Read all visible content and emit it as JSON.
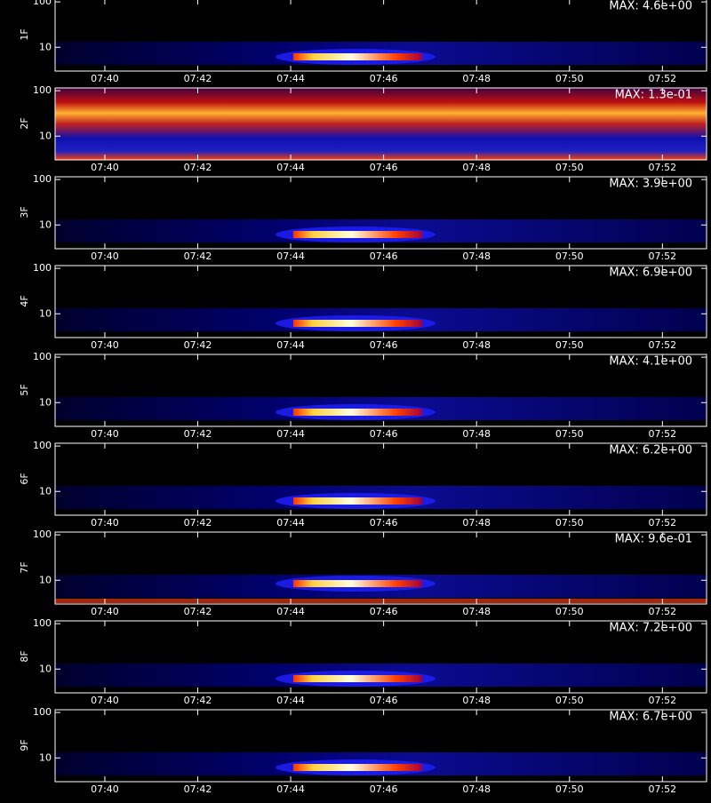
{
  "chart_data": [
    {
      "type": "heatmap",
      "ylabel": "1F",
      "annotation": "MAX: 4.6e+00",
      "log_y": true,
      "xlim": [
        458.93,
        472.95
      ],
      "ylim": [
        3,
        115
      ],
      "yticks": [
        10,
        100
      ],
      "xticks": [
        {
          "value": 460,
          "label": "07:40"
        },
        {
          "value": 462,
          "label": "07:42"
        },
        {
          "value": 464,
          "label": "07:44"
        },
        {
          "value": 466,
          "label": "07:46"
        },
        {
          "value": 468,
          "label": "07:48"
        },
        {
          "value": 470,
          "label": "07:50"
        },
        {
          "value": 472,
          "label": "07:52"
        }
      ]
    },
    {
      "type": "heatmap",
      "ylabel": "2F",
      "annotation": "MAX: 1.3e-01",
      "log_y": true,
      "xlim": [
        458.93,
        472.95
      ],
      "ylim": [
        3,
        115
      ],
      "yticks": [
        10,
        100
      ],
      "xticks": [
        {
          "value": 460,
          "label": "07:40"
        },
        {
          "value": 462,
          "label": "07:42"
        },
        {
          "value": 464,
          "label": "07:44"
        },
        {
          "value": 466,
          "label": "07:46"
        },
        {
          "value": 468,
          "label": "07:48"
        },
        {
          "value": 470,
          "label": "07:50"
        },
        {
          "value": 472,
          "label": "07:52"
        }
      ]
    },
    {
      "type": "heatmap",
      "ylabel": "3F",
      "annotation": "MAX: 3.9e+00",
      "log_y": true,
      "xlim": [
        458.93,
        472.95
      ],
      "ylim": [
        3,
        115
      ],
      "yticks": [
        10,
        100
      ],
      "xticks": [
        {
          "value": 460,
          "label": "07:40"
        },
        {
          "value": 462,
          "label": "07:42"
        },
        {
          "value": 464,
          "label": "07:44"
        },
        {
          "value": 466,
          "label": "07:46"
        },
        {
          "value": 468,
          "label": "07:48"
        },
        {
          "value": 470,
          "label": "07:50"
        },
        {
          "value": 472,
          "label": "07:52"
        }
      ]
    },
    {
      "type": "heatmap",
      "ylabel": "4F",
      "annotation": "MAX: 6.9e+00",
      "log_y": true,
      "xlim": [
        458.93,
        472.95
      ],
      "ylim": [
        3,
        115
      ],
      "yticks": [
        10,
        100
      ],
      "xticks": [
        {
          "value": 460,
          "label": "07:40"
        },
        {
          "value": 462,
          "label": "07:42"
        },
        {
          "value": 464,
          "label": "07:44"
        },
        {
          "value": 466,
          "label": "07:46"
        },
        {
          "value": 468,
          "label": "07:48"
        },
        {
          "value": 470,
          "label": "07:50"
        },
        {
          "value": 472,
          "label": "07:52"
        }
      ]
    },
    {
      "type": "heatmap",
      "ylabel": "5F",
      "annotation": "MAX: 4.1e+00",
      "log_y": true,
      "xlim": [
        458.93,
        472.95
      ],
      "ylim": [
        3,
        115
      ],
      "yticks": [
        10,
        100
      ],
      "xticks": [
        {
          "value": 460,
          "label": "07:40"
        },
        {
          "value": 462,
          "label": "07:42"
        },
        {
          "value": 464,
          "label": "07:44"
        },
        {
          "value": 466,
          "label": "07:46"
        },
        {
          "value": 468,
          "label": "07:48"
        },
        {
          "value": 470,
          "label": "07:50"
        },
        {
          "value": 472,
          "label": "07:52"
        }
      ]
    },
    {
      "type": "heatmap",
      "ylabel": "6F",
      "annotation": "MAX: 6.2e+00",
      "log_y": true,
      "xlim": [
        458.93,
        472.95
      ],
      "ylim": [
        3,
        115
      ],
      "yticks": [
        10,
        100
      ],
      "xticks": [
        {
          "value": 460,
          "label": "07:40"
        },
        {
          "value": 462,
          "label": "07:42"
        },
        {
          "value": 464,
          "label": "07:44"
        },
        {
          "value": 466,
          "label": "07:46"
        },
        {
          "value": 468,
          "label": "07:48"
        },
        {
          "value": 470,
          "label": "07:50"
        },
        {
          "value": 472,
          "label": "07:52"
        }
      ]
    },
    {
      "type": "heatmap",
      "ylabel": "7F",
      "annotation": "MAX: 9.6e-01",
      "log_y": true,
      "xlim": [
        458.93,
        472.95
      ],
      "ylim": [
        3,
        115
      ],
      "yticks": [
        10,
        100
      ],
      "xticks": [
        {
          "value": 460,
          "label": "07:40"
        },
        {
          "value": 462,
          "label": "07:42"
        },
        {
          "value": 464,
          "label": "07:44"
        },
        {
          "value": 466,
          "label": "07:46"
        },
        {
          "value": 468,
          "label": "07:48"
        },
        {
          "value": 470,
          "label": "07:50"
        },
        {
          "value": 472,
          "label": "07:52"
        }
      ]
    },
    {
      "type": "heatmap",
      "ylabel": "8F",
      "annotation": "MAX: 7.2e+00",
      "log_y": true,
      "xlim": [
        458.93,
        472.95
      ],
      "ylim": [
        3,
        115
      ],
      "yticks": [
        10,
        100
      ],
      "xticks": [
        {
          "value": 460,
          "label": "07:40"
        },
        {
          "value": 462,
          "label": "07:42"
        },
        {
          "value": 464,
          "label": "07:44"
        },
        {
          "value": 466,
          "label": "07:46"
        },
        {
          "value": 468,
          "label": "07:48"
        },
        {
          "value": 470,
          "label": "07:50"
        },
        {
          "value": 472,
          "label": "07:52"
        }
      ]
    },
    {
      "type": "heatmap",
      "ylabel": "9F",
      "annotation": "MAX: 6.7e+00",
      "log_y": true,
      "xlim": [
        458.93,
        472.95
      ],
      "ylim": [
        3,
        115
      ],
      "yticks": [
        10,
        100
      ],
      "xticks": [
        {
          "value": 460,
          "label": "07:40"
        },
        {
          "value": 462,
          "label": "07:42"
        },
        {
          "value": 464,
          "label": "07:44"
        },
        {
          "value": 466,
          "label": "07:46"
        },
        {
          "value": 468,
          "label": "07:48"
        },
        {
          "value": 470,
          "label": "07:50"
        },
        {
          "value": 472,
          "label": "07:52"
        }
      ]
    }
  ]
}
